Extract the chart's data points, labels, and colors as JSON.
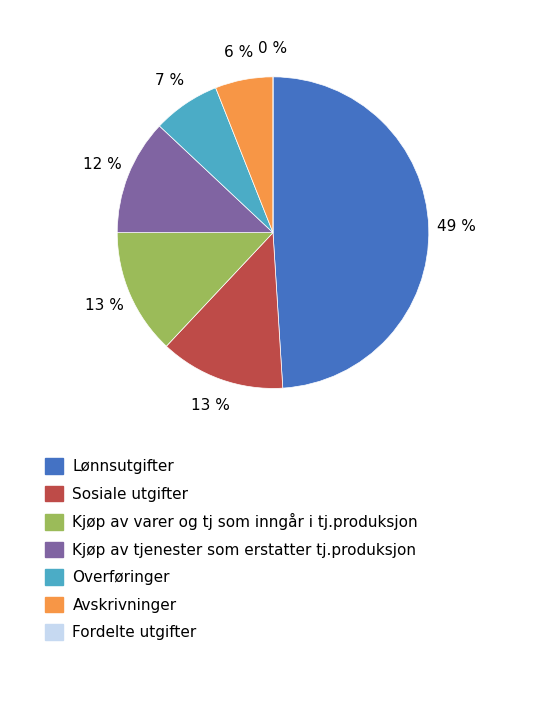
{
  "labels": [
    "Lønnsutgifter",
    "Sosiale utgifter",
    "Kjøp av varer og tj som inngår i tj.produksjon",
    "Kjøp av tjenester som erstatter tj.produksjon",
    "Overføringer",
    "Avskrivninger",
    "Fordelte utgifter"
  ],
  "values": [
    49,
    13,
    13,
    12,
    7,
    6,
    0
  ],
  "colors": [
    "#4472C4",
    "#BE4B48",
    "#9BBB59",
    "#8064A2",
    "#4BACC6",
    "#F79646",
    "#C6D9F1"
  ],
  "pct_labels": [
    "49 %",
    "13 %",
    "13 %",
    "12 %",
    "7 %",
    "6 %",
    "0 %"
  ],
  "legend_fontsize": 11,
  "pct_fontsize": 11,
  "figsize": [
    5.46,
    7.27
  ],
  "dpi": 100,
  "bg_color": "#FFFFFF"
}
